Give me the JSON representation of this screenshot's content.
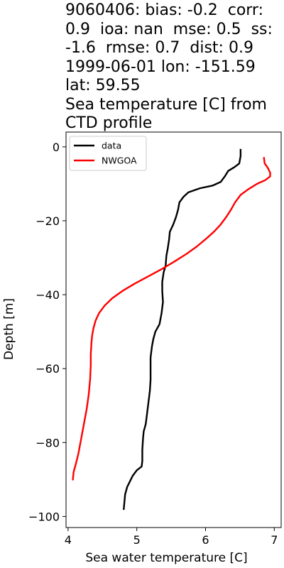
{
  "chart_data": {
    "type": "line",
    "title_lines": [
      "9060406: bias: -0.2  corr:",
      "0.9  ioa: nan  mse: 0.5  ss:",
      "-1.6  rmse: 0.7  dist: 0.9",
      "1999-06-01 lon: -151.59",
      "lat: 59.55",
      "Sea temperature [C] from",
      "CTD profile"
    ],
    "xlabel": "Sea water temperature [C]",
    "ylabel": "Depth [m]",
    "xlim": [
      3.97,
      7.1
    ],
    "ylim": [
      -103,
      4
    ],
    "xticks": [
      4,
      5,
      6,
      7
    ],
    "yticks": [
      0,
      -20,
      -40,
      -60,
      -80,
      -100
    ],
    "ytick_labels": [
      "0",
      "−20",
      "−40",
      "−60",
      "−80",
      "−100"
    ],
    "grid": false,
    "legend_position": "upper-left",
    "series": [
      {
        "name": "data",
        "color": "#000000",
        "points": [
          [
            6.51,
            -0.8
          ],
          [
            6.51,
            -2.5
          ],
          [
            6.49,
            -4.5
          ],
          [
            6.42,
            -5.5
          ],
          [
            6.33,
            -6.5
          ],
          [
            6.28,
            -8.0
          ],
          [
            6.22,
            -9.5
          ],
          [
            6.1,
            -10.5
          ],
          [
            5.92,
            -11.2
          ],
          [
            5.75,
            -12.3
          ],
          [
            5.68,
            -13.5
          ],
          [
            5.62,
            -15.0
          ],
          [
            5.6,
            -17.0
          ],
          [
            5.57,
            -19.0
          ],
          [
            5.53,
            -21.0
          ],
          [
            5.48,
            -23.0
          ],
          [
            5.47,
            -25.0
          ],
          [
            5.45,
            -27.5
          ],
          [
            5.43,
            -29.5
          ],
          [
            5.42,
            -32.0
          ],
          [
            5.39,
            -34.0
          ],
          [
            5.37,
            -36.5
          ],
          [
            5.37,
            -39.0
          ],
          [
            5.38,
            -42.0
          ],
          [
            5.36,
            -45.0
          ],
          [
            5.33,
            -48.0
          ],
          [
            5.27,
            -50.0
          ],
          [
            5.24,
            -52.0
          ],
          [
            5.22,
            -54.0
          ],
          [
            5.2,
            -57.0
          ],
          [
            5.2,
            -60.0
          ],
          [
            5.2,
            -63.0
          ],
          [
            5.19,
            -66.0
          ],
          [
            5.17,
            -69.0
          ],
          [
            5.15,
            -72.0
          ],
          [
            5.13,
            -75.0
          ],
          [
            5.1,
            -77.0
          ],
          [
            5.09,
            -79.0
          ],
          [
            5.08,
            -82.0
          ],
          [
            5.08,
            -85.0
          ],
          [
            5.07,
            -86.5
          ],
          [
            5.0,
            -87.5
          ],
          [
            4.94,
            -89.0
          ],
          [
            4.9,
            -90.5
          ],
          [
            4.86,
            -92.0
          ],
          [
            4.83,
            -94.0
          ],
          [
            4.82,
            -96.0
          ],
          [
            4.81,
            -98.0
          ]
        ]
      },
      {
        "name": "NWGOA",
        "color": "#ff0000",
        "points": [
          [
            6.85,
            -3.0
          ],
          [
            6.86,
            -4.5
          ],
          [
            6.9,
            -5.5
          ],
          [
            6.94,
            -7.0
          ],
          [
            6.94,
            -8.0
          ],
          [
            6.87,
            -9.0
          ],
          [
            6.75,
            -10.0
          ],
          [
            6.62,
            -11.5
          ],
          [
            6.51,
            -13.0
          ],
          [
            6.43,
            -15.0
          ],
          [
            6.37,
            -17.0
          ],
          [
            6.3,
            -19.0
          ],
          [
            6.22,
            -21.0
          ],
          [
            6.12,
            -23.0
          ],
          [
            6.0,
            -25.0
          ],
          [
            5.87,
            -27.0
          ],
          [
            5.72,
            -29.0
          ],
          [
            5.55,
            -31.0
          ],
          [
            5.37,
            -33.0
          ],
          [
            5.17,
            -35.0
          ],
          [
            4.97,
            -37.0
          ],
          [
            4.79,
            -39.0
          ],
          [
            4.64,
            -41.0
          ],
          [
            4.53,
            -43.0
          ],
          [
            4.45,
            -45.0
          ],
          [
            4.4,
            -47.0
          ],
          [
            4.37,
            -49.0
          ],
          [
            4.35,
            -51.0
          ],
          [
            4.34,
            -53.0
          ],
          [
            4.33,
            -56.0
          ],
          [
            4.33,
            -59.0
          ],
          [
            4.32,
            -63.0
          ],
          [
            4.3,
            -67.0
          ],
          [
            4.27,
            -71.0
          ],
          [
            4.23,
            -75.0
          ],
          [
            4.19,
            -79.0
          ],
          [
            4.15,
            -83.0
          ],
          [
            4.11,
            -86.0
          ],
          [
            4.08,
            -88.0
          ],
          [
            4.07,
            -90.0
          ]
        ]
      }
    ]
  }
}
